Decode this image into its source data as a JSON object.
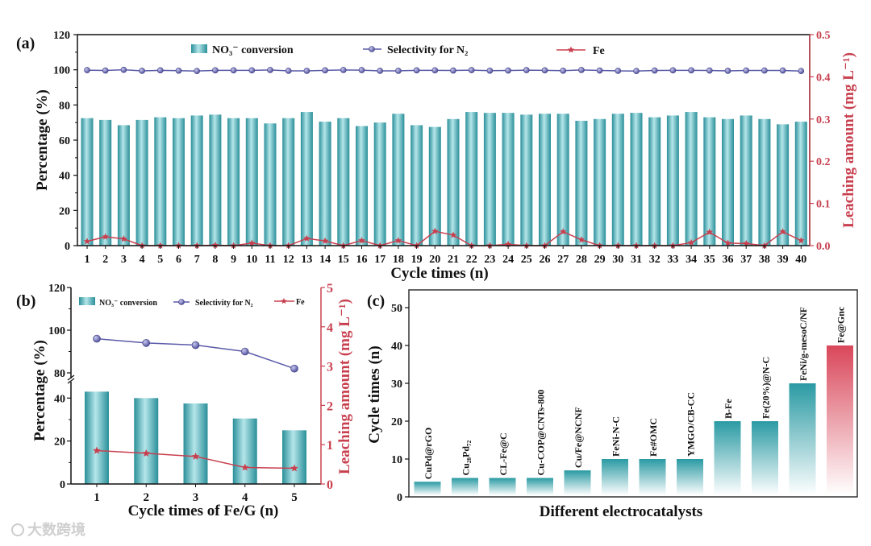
{
  "colors": {
    "bar": "#2a9aa3",
    "bar_light": "#b5e6ea",
    "selectivity": "#5a5aa8",
    "fe": "#c8404f",
    "right_axis": "#c8404f",
    "highlight": "#d9475a"
  },
  "watermark": "大数跨境",
  "chart_data": [
    {
      "panel_label": "(a)",
      "type": "bar",
      "title": "",
      "xlabel": "Cycle times (n)",
      "ylabel": "Percentage (%)",
      "ylabel_right": "Leaching amount (mg L⁻¹)",
      "ylim": [
        0,
        120
      ],
      "ylim_right": [
        0,
        0.5
      ],
      "yticks": [
        "0",
        "20",
        "40",
        "60",
        "80",
        "100",
        "120"
      ],
      "yticks_right": [
        "0.0",
        "0.1",
        "0.2",
        "0.3",
        "0.4",
        "0.5"
      ],
      "legend": [
        "NO₃⁻ conversion",
        "Selectivity for N₂",
        "Fe"
      ],
      "legend_position": "top",
      "categories": [
        "1",
        "2",
        "3",
        "4",
        "5",
        "6",
        "7",
        "8",
        "9",
        "10",
        "11",
        "12",
        "13",
        "14",
        "15",
        "16",
        "17",
        "18",
        "19",
        "20",
        "21",
        "22",
        "23",
        "24",
        "25",
        "26",
        "27",
        "28",
        "29",
        "30",
        "31",
        "32",
        "33",
        "34",
        "35",
        "36",
        "37",
        "38",
        "39",
        "40"
      ],
      "series": [
        {
          "name": "NO₃⁻ conversion",
          "type": "bar",
          "axis": "left",
          "values": [
            72.5,
            71.5,
            68.5,
            71.5,
            73,
            72.5,
            74,
            74.5,
            72.5,
            72.5,
            69.5,
            72.5,
            76,
            70.5,
            72.5,
            68,
            70,
            75,
            68.5,
            67.5,
            72,
            76,
            75.5,
            75.5,
            74.5,
            75,
            75,
            71,
            72,
            75,
            75.5,
            73,
            74,
            76,
            73,
            72,
            74,
            72,
            69,
            70.5
          ]
        },
        {
          "name": "Selectivity for N₂",
          "type": "line",
          "axis": "left",
          "values": [
            99.8,
            99.6,
            100,
            99.4,
            99.7,
            99.5,
            99.3,
            99.7,
            99.7,
            99.7,
            99.9,
            99.4,
            99.4,
            99.7,
            99.9,
            99.8,
            99.4,
            99.4,
            99.7,
            99.7,
            99.6,
            99.8,
            99.5,
            99.6,
            99.8,
            99.7,
            99.5,
            99.9,
            99.6,
            99.4,
            99.3,
            99.6,
            99.7,
            99.7,
            99.6,
            99.4,
            99.6,
            99.6,
            99.6,
            99.3
          ]
        },
        {
          "name": "Fe",
          "type": "line",
          "axis": "right",
          "values": [
            0.01,
            0.021,
            0.016,
            0,
            0,
            0,
            0,
            0.001,
            0,
            0.006,
            0,
            0,
            0.017,
            0.011,
            0,
            0.012,
            0,
            0.012,
            0,
            0.034,
            0.025,
            0,
            0,
            0.003,
            0,
            0,
            0.033,
            0.014,
            0,
            0,
            0,
            0,
            0,
            0.007,
            0.032,
            0.006,
            0.005,
            0,
            0.033,
            0.012
          ]
        }
      ]
    },
    {
      "panel_label": "(b)",
      "type": "bar",
      "xlabel": "Cycle times of Fe/G (n)",
      "ylabel": "Percentage (%)",
      "ylabel_right": "Leaching amount (mg L⁻¹)",
      "ylim": [
        0,
        120
      ],
      "axis_break": [
        45,
        80
      ],
      "ylim_right": [
        0,
        5
      ],
      "yticks": [
        "0",
        "20",
        "40",
        "80",
        "100",
        "120"
      ],
      "yticks_right": [
        "0",
        "1",
        "2",
        "3",
        "4",
        "5"
      ],
      "legend": [
        "NO₃⁻ conversion",
        "Selectivity for N₂",
        "Fe"
      ],
      "legend_position": "top",
      "categories": [
        "1",
        "2",
        "3",
        "4",
        "5"
      ],
      "series": [
        {
          "name": "NO₃⁻ conversion",
          "type": "bar",
          "axis": "left",
          "values": [
            43,
            40,
            37.5,
            30.5,
            25
          ]
        },
        {
          "name": "Selectivity for N₂",
          "type": "line",
          "axis": "left",
          "values": [
            96,
            94,
            93,
            90,
            82
          ]
        },
        {
          "name": "Fe",
          "type": "line",
          "axis": "right",
          "values": [
            0.85,
            0.78,
            0.7,
            0.42,
            0.4
          ]
        }
      ]
    },
    {
      "panel_label": "(c)",
      "type": "bar",
      "xlabel": "Different electrocatalysts",
      "ylabel": "Cycle times (n)",
      "ylim": [
        0,
        55
      ],
      "yticks": [
        "0",
        "10",
        "20",
        "30",
        "40",
        "50"
      ],
      "categories": [
        "CuPd@rGO",
        "Cu₂₈Pd₇₂",
        "CL-Fe@C",
        "Cu-COP@CNTs-800",
        "Cu/Fe@NCNF",
        "FeNi-N-C",
        "Fe#OMC",
        "YMGO/CB-CC",
        "B-Fe",
        "Fe(20%)@N-C",
        "FeNi/g-mesoC/NF",
        "Fe@Gnc"
      ],
      "values": [
        4,
        5,
        5,
        5,
        7,
        10,
        10,
        10,
        20,
        20,
        30,
        40
      ],
      "highlight_index": 11
    }
  ]
}
